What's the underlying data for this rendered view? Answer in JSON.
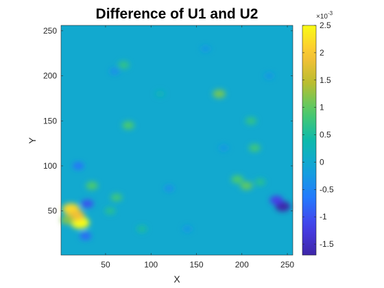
{
  "chart_data": {
    "type": "heatmap",
    "title": "Difference of U1 and U2",
    "xlabel": "X",
    "ylabel": "Y",
    "xlim": [
      1,
      256
    ],
    "ylim": [
      1,
      256
    ],
    "x_ticks": [
      50,
      100,
      150,
      200,
      250
    ],
    "y_ticks": [
      50,
      100,
      150,
      200,
      250
    ],
    "colorbar": {
      "colormap": "parula",
      "clim": [
        -1.7,
        2.5
      ],
      "ticks": [
        -1.5,
        -1,
        -0.5,
        0,
        0.5,
        1,
        1.5,
        2,
        2.5
      ],
      "tick_labels": [
        "-1.5",
        "-1",
        "-0.5",
        "0",
        "0.5",
        "1",
        "1.5",
        "2",
        "2.5"
      ],
      "multiplier": "×10",
      "exponent": "-3"
    },
    "background_value": 0.0,
    "features": [
      {
        "x": 12,
        "y": 52,
        "value": 2.2
      },
      {
        "x": 22,
        "y": 37,
        "value": 2.5
      },
      {
        "x": 18,
        "y": 45,
        "value": 1.9
      },
      {
        "x": 8,
        "y": 40,
        "value": 1.2
      },
      {
        "x": 30,
        "y": 58,
        "value": -1.0
      },
      {
        "x": 28,
        "y": 22,
        "value": -0.8
      },
      {
        "x": 245,
        "y": 55,
        "value": -1.7
      },
      {
        "x": 238,
        "y": 62,
        "value": -1.2
      },
      {
        "x": 175,
        "y": 180,
        "value": 1.1
      },
      {
        "x": 210,
        "y": 150,
        "value": 0.7
      },
      {
        "x": 214,
        "y": 120,
        "value": 0.8
      },
      {
        "x": 195,
        "y": 85,
        "value": 0.9
      },
      {
        "x": 205,
        "y": 78,
        "value": 1.0
      },
      {
        "x": 220,
        "y": 82,
        "value": 0.6
      },
      {
        "x": 75,
        "y": 145,
        "value": 0.9
      },
      {
        "x": 35,
        "y": 78,
        "value": 0.9
      },
      {
        "x": 55,
        "y": 50,
        "value": 0.6
      },
      {
        "x": 62,
        "y": 65,
        "value": 0.8
      },
      {
        "x": 70,
        "y": 212,
        "value": 0.7
      },
      {
        "x": 60,
        "y": 205,
        "value": -0.4
      },
      {
        "x": 20,
        "y": 100,
        "value": -0.7
      },
      {
        "x": 120,
        "y": 75,
        "value": -0.4
      },
      {
        "x": 160,
        "y": 230,
        "value": -0.3
      },
      {
        "x": 90,
        "y": 30,
        "value": 0.5
      },
      {
        "x": 140,
        "y": 30,
        "value": -0.3
      },
      {
        "x": 230,
        "y": 200,
        "value": -0.3
      },
      {
        "x": 110,
        "y": 180,
        "value": 0.3
      },
      {
        "x": 180,
        "y": 120,
        "value": -0.3
      }
    ]
  }
}
